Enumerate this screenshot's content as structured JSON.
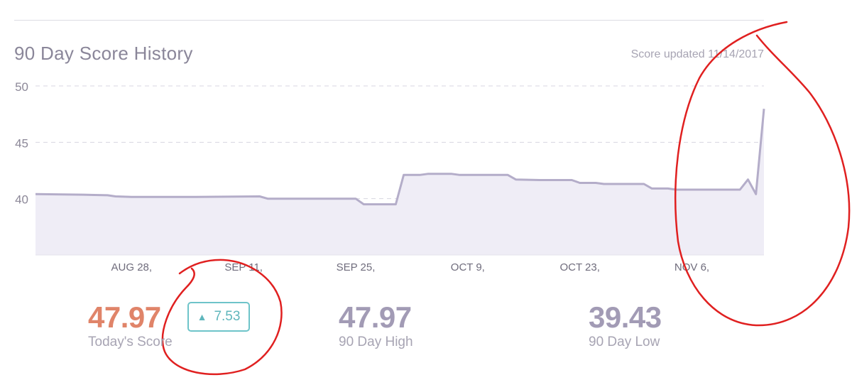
{
  "header": {
    "title": "90 Day Score History",
    "updated": "Score updated 11/14/2017"
  },
  "chart_data": {
    "type": "area",
    "title": "90 Day Score History",
    "ylim": [
      35,
      50
    ],
    "yticks": [
      50,
      45,
      40
    ],
    "xticks": [
      "AUG 28,",
      "SEP 11,",
      "SEP 25,",
      "OCT 9,",
      "OCT 23,",
      "NOV 6,"
    ],
    "xtick_days": [
      12,
      26,
      40,
      54,
      68,
      82
    ],
    "xlim_days": [
      0,
      91
    ],
    "grid": "horizontal dashed",
    "line_color": "#b4adc9",
    "fill_color": "#efedf6",
    "series": [
      {
        "values": [
          [
            0,
            40.4
          ],
          [
            6,
            40.35
          ],
          [
            9,
            40.3
          ],
          [
            10,
            40.2
          ],
          [
            12,
            40.15
          ],
          [
            20,
            40.15
          ],
          [
            28,
            40.2
          ],
          [
            29,
            40.0
          ],
          [
            40,
            40.0
          ],
          [
            41,
            39.5
          ],
          [
            45,
            39.5
          ],
          [
            46,
            42.1
          ],
          [
            48,
            42.1
          ],
          [
            49,
            42.2
          ],
          [
            52,
            42.2
          ],
          [
            53,
            42.1
          ],
          [
            59,
            42.1
          ],
          [
            60,
            41.7
          ],
          [
            63,
            41.65
          ],
          [
            67,
            41.65
          ],
          [
            68,
            41.4
          ],
          [
            70,
            41.4
          ],
          [
            71,
            41.3
          ],
          [
            76,
            41.3
          ],
          [
            77,
            40.9
          ],
          [
            79,
            40.9
          ],
          [
            80,
            40.8
          ],
          [
            88,
            40.8
          ],
          [
            89,
            41.7
          ],
          [
            90,
            40.4
          ],
          [
            91,
            47.97
          ]
        ]
      }
    ]
  },
  "stats": {
    "today": {
      "value": "47.97",
      "label": "Today's Score",
      "change": "7.53",
      "change_direction": "up"
    },
    "high": {
      "value": "47.97",
      "label": "90 Day High"
    },
    "low": {
      "value": "39.43",
      "label": "90 Day Low"
    }
  },
  "colors": {
    "today": "#e08469",
    "stat": "#a29bb5",
    "badge": "#6ec4c9",
    "annotation": "#e02020"
  }
}
